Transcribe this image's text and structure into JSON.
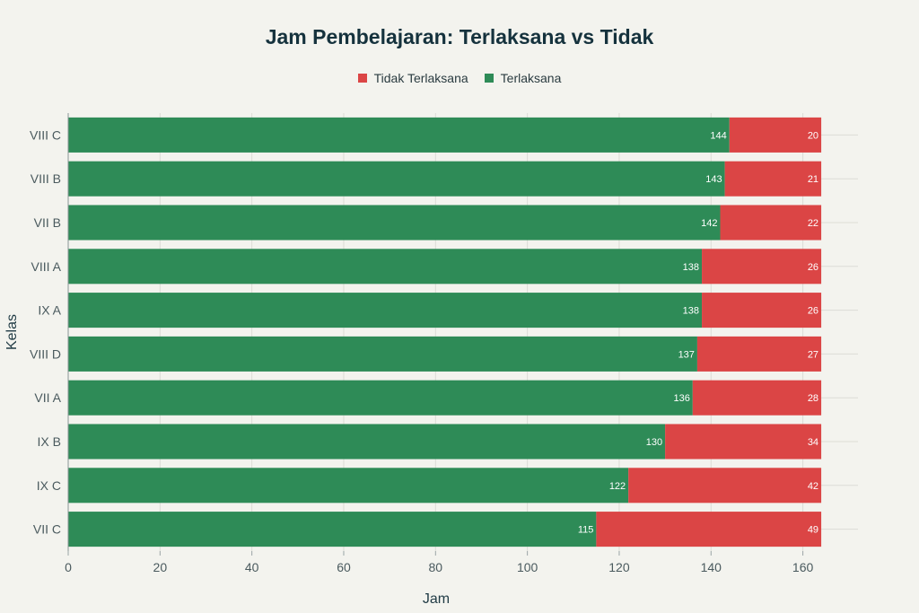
{
  "chart_data": {
    "type": "bar",
    "orientation": "horizontal",
    "stacked": true,
    "title": "Jam Pembelajaran: Terlaksana vs Tidak",
    "xlabel": "Jam",
    "ylabel": "Kelas",
    "xlim": [
      0,
      172
    ],
    "xticks": [
      0,
      20,
      40,
      60,
      80,
      100,
      120,
      140,
      160
    ],
    "grid": true,
    "legend_position": "top-center",
    "categories": [
      "VIII C",
      "VIII B",
      "VII B",
      "VIII A",
      "IX A",
      "VIII D",
      "VII A",
      "IX B",
      "IX C",
      "VII C"
    ],
    "legend_order": [
      "Tidak Terlaksana",
      "Terlaksana"
    ],
    "series": [
      {
        "name": "Terlaksana",
        "color": "#2e8b57",
        "values": [
          144,
          143,
          142,
          138,
          138,
          137,
          136,
          130,
          122,
          115
        ]
      },
      {
        "name": "Tidak Terlaksana",
        "color": "#db4545",
        "values": [
          20,
          21,
          22,
          26,
          26,
          27,
          28,
          34,
          42,
          49
        ]
      }
    ]
  }
}
